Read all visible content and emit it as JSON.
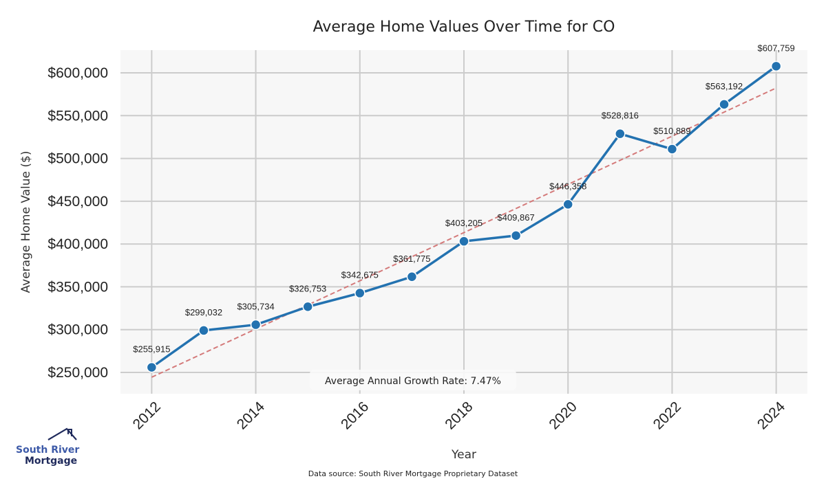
{
  "chart_data": {
    "type": "line",
    "title": "Average Home Values Over Time for CO",
    "xlabel": "Year",
    "ylabel": "Average Home Value ($)",
    "x": [
      2012,
      2013,
      2014,
      2015,
      2016,
      2017,
      2018,
      2019,
      2020,
      2021,
      2022,
      2023,
      2024
    ],
    "series": [
      {
        "name": "Average Home Value",
        "color": "#2372b0",
        "values": [
          255915,
          299032,
          305734,
          326753,
          342675,
          361775,
          403205,
          409867,
          446358,
          528816,
          510889,
          563192,
          607759
        ],
        "labels": [
          "$255,915",
          "$299,032",
          "$305,734",
          "$326,753",
          "$342,675",
          "$361,775",
          "$403,205",
          "$409,867",
          "$446,358",
          "$528,816",
          "$510,889",
          "$563,192",
          "$607,759"
        ]
      }
    ],
    "trendline": {
      "name": "Trend",
      "color": "#d47a7a",
      "style": "dashed",
      "x": [
        2012,
        2024
      ],
      "y": [
        244400,
        582300
      ]
    },
    "xticks": [
      2012,
      2014,
      2016,
      2018,
      2020,
      2022,
      2024
    ],
    "xtick_labels": [
      "2012",
      "2014",
      "2016",
      "2018",
      "2020",
      "2022",
      "2024"
    ],
    "yticks": [
      250000,
      300000,
      350000,
      400000,
      450000,
      500000,
      550000,
      600000
    ],
    "ytick_labels": [
      "$250,000",
      "$300,000",
      "$350,000",
      "$400,000",
      "$450,000",
      "$500,000",
      "$550,000",
      "$600,000"
    ],
    "xlim": [
      2011.4,
      2024.6
    ],
    "ylim": [
      225100,
      626500
    ],
    "grid": true,
    "annotation": "Average Annual Growth Rate: 7.47%",
    "background": "#f7f7f7",
    "grid_color": "#cccccc"
  },
  "footer": {
    "source": "Data source: South River Mortgage Proprietary Dataset"
  },
  "logo": {
    "line1": "South River",
    "line2": "Mortgage"
  }
}
